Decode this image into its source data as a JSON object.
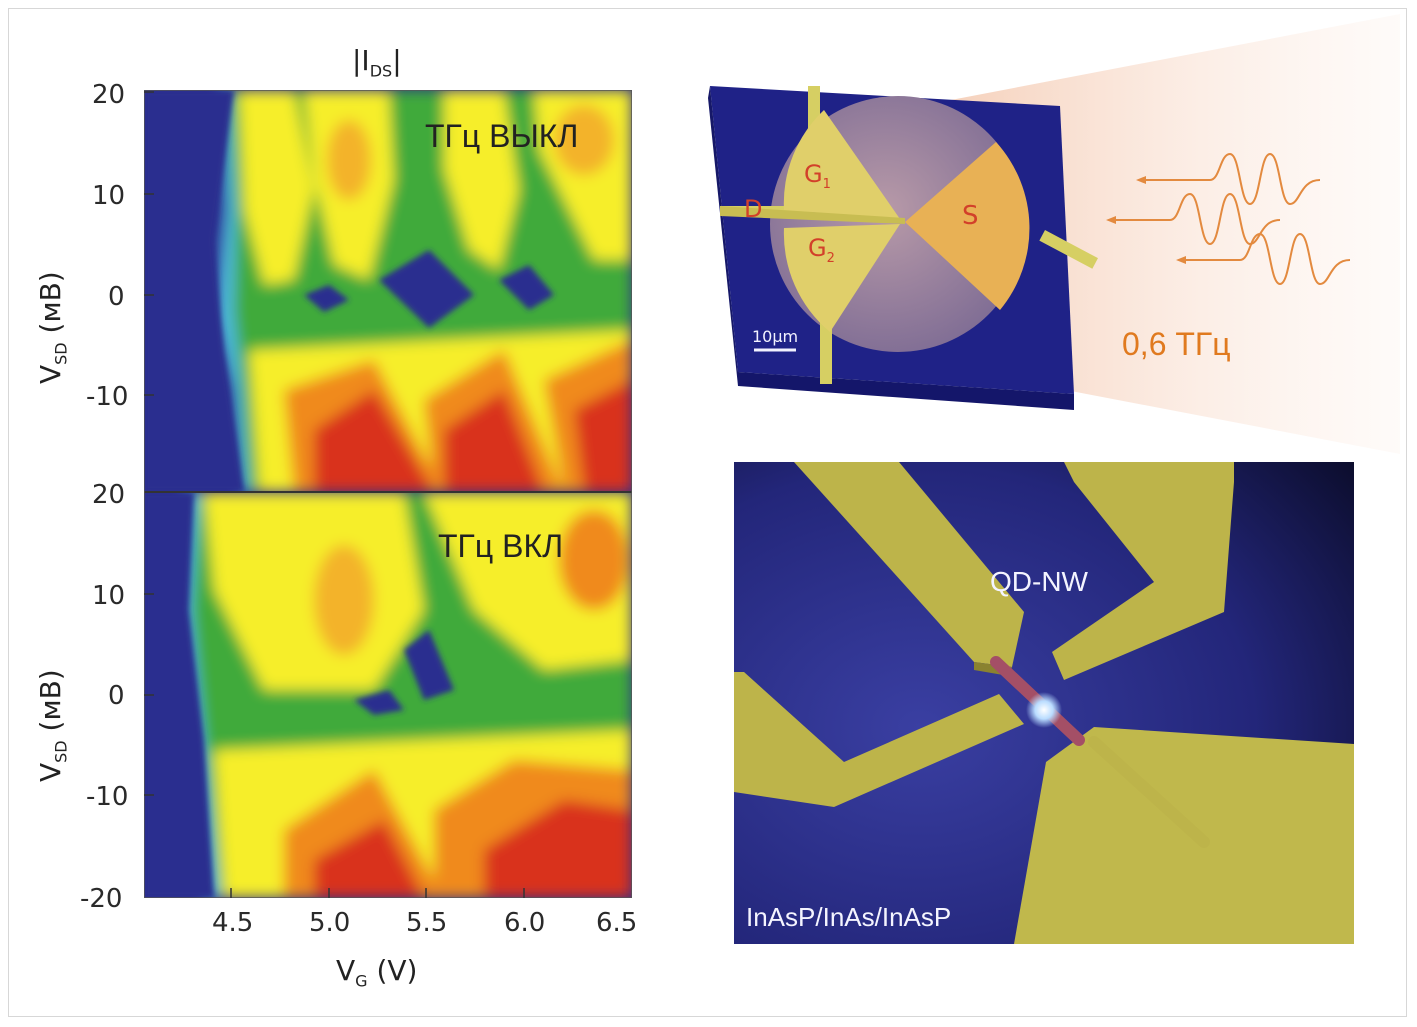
{
  "plot": {
    "title_main": "|I",
    "title_sub": "DS",
    "title_end": "|",
    "top_panel_label": "ТГц ВЫКЛ",
    "bottom_panel_label": "ТГц ВКЛ",
    "ylabel_main": "V",
    "ylabel_sub": "SD",
    "ylabel_unit": " (мВ)",
    "xlabel_main": "V",
    "xlabel_sub": "G",
    "xlabel_unit": " (V)",
    "top_yticks": [
      "20",
      "10",
      "0",
      "-10"
    ],
    "bottom_yticks": [
      "20",
      "10",
      "0",
      "-10",
      "-20"
    ],
    "xticks": [
      "4.5",
      "5.0",
      "5.5",
      "6.0",
      "6.5"
    ]
  },
  "device": {
    "g1_main": "G",
    "g1_sub": "1",
    "g2_main": "G",
    "g2_sub": "2",
    "drain": "D",
    "source": "S",
    "scale_bar": "10μm",
    "frequency": "0,6 ТГц"
  },
  "sem": {
    "qd_label": "QD-NW",
    "material_label": "InAsP/InAs/InAsP"
  },
  "colors": {
    "background_blue": "#2b2f8f",
    "field_yellow": "#f6ee2a",
    "field_orange": "#f08a1e",
    "field_red": "#d9321a",
    "electrode_gold": "#c9c24a",
    "thz_orange": "#e07a1f"
  }
}
